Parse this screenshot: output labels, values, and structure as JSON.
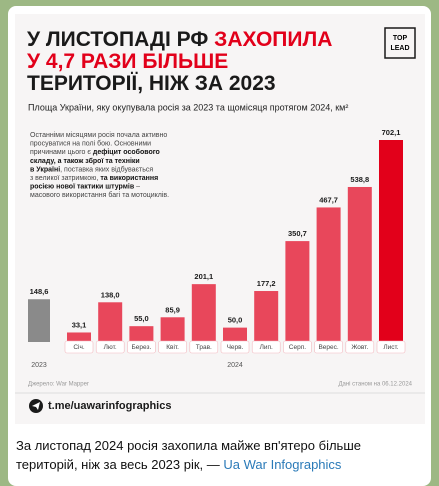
{
  "chart_data": {
    "type": "bar",
    "title_lines": [
      [
        {
          "text": "У ЛИСТОПАДІ РФ ",
          "color": "#1a1a1a"
        },
        {
          "text": "ЗАХОПИЛА",
          "color": "#e2001a"
        }
      ],
      [
        {
          "text": "У 4,7 РАЗИ БІЛЬШЕ",
          "color": "#e2001a"
        }
      ],
      [
        {
          "text": "ТЕРИТОРІЇ, НІЖ ЗА 2023",
          "color": "#1a1a1a"
        }
      ]
    ],
    "subtitle": "Площа України, яку окупувала росія за 2023 та щомісяця протягом 2024, км²",
    "annotation": [
      [
        {
          "text": "Останніми місяцями росія почала активно",
          "bold": false
        }
      ],
      [
        {
          "text": "просуватися на полі бою. Основними",
          "bold": false
        }
      ],
      [
        {
          "text": "причинами цього є ",
          "bold": false
        },
        {
          "text": "дефіцит особового",
          "bold": true
        }
      ],
      [
        {
          "text": "складу, а також зброї та техніки",
          "bold": true
        }
      ],
      [
        {
          "text": "в Україні",
          "bold": true
        },
        {
          "text": ", поставка яких відбувається",
          "bold": false
        }
      ],
      [
        {
          "text": "з великої затримкою, ",
          "bold": false
        },
        {
          "text": "та використання",
          "bold": true
        }
      ],
      [
        {
          "text": "росією нової тактики штурмів",
          "bold": true
        },
        {
          "text": " –",
          "bold": false
        }
      ],
      [
        {
          "text": "масового використання багі та мотоциклів.",
          "bold": false
        }
      ]
    ],
    "categories": [
      "2023",
      "Січ.",
      "Лют.",
      "Берез.",
      "Квіт.",
      "Трав.",
      "Черв.",
      "Лип.",
      "Серп.",
      "Верес.",
      "Жовт.",
      "Лист."
    ],
    "group_label": "2024",
    "values": [
      148.6,
      33.1,
      138.0,
      55.0,
      85.9,
      201.1,
      50.0,
      177.2,
      350.7,
      467.7,
      538.8,
      702.1
    ],
    "value_labels": [
      "148,6",
      "33,1",
      "138,0",
      "55,0",
      "85,9",
      "201,1",
      "50,0",
      "177,2",
      "350,7",
      "467,7",
      "538,8",
      "702,1"
    ],
    "colors": [
      "#8a8a8a",
      "#e8475b",
      "#e8475b",
      "#e8475b",
      "#e8475b",
      "#e8475b",
      "#e8475b",
      "#e8475b",
      "#e8475b",
      "#e8475b",
      "#e8475b",
      "#e2001a"
    ],
    "source": "Джерело: War Mapper",
    "date_note": "Дані станом на 06.12.2024"
  },
  "logo": [
    "TOP",
    "LEAD"
  ],
  "link": "t.me/uawarinfographics",
  "caption": {
    "text": "За листопад 2024 росія захопила майже вп'ятеро більше територій, ніж за весь 2023 рік, — ",
    "link": "Ua War Infographics"
  }
}
